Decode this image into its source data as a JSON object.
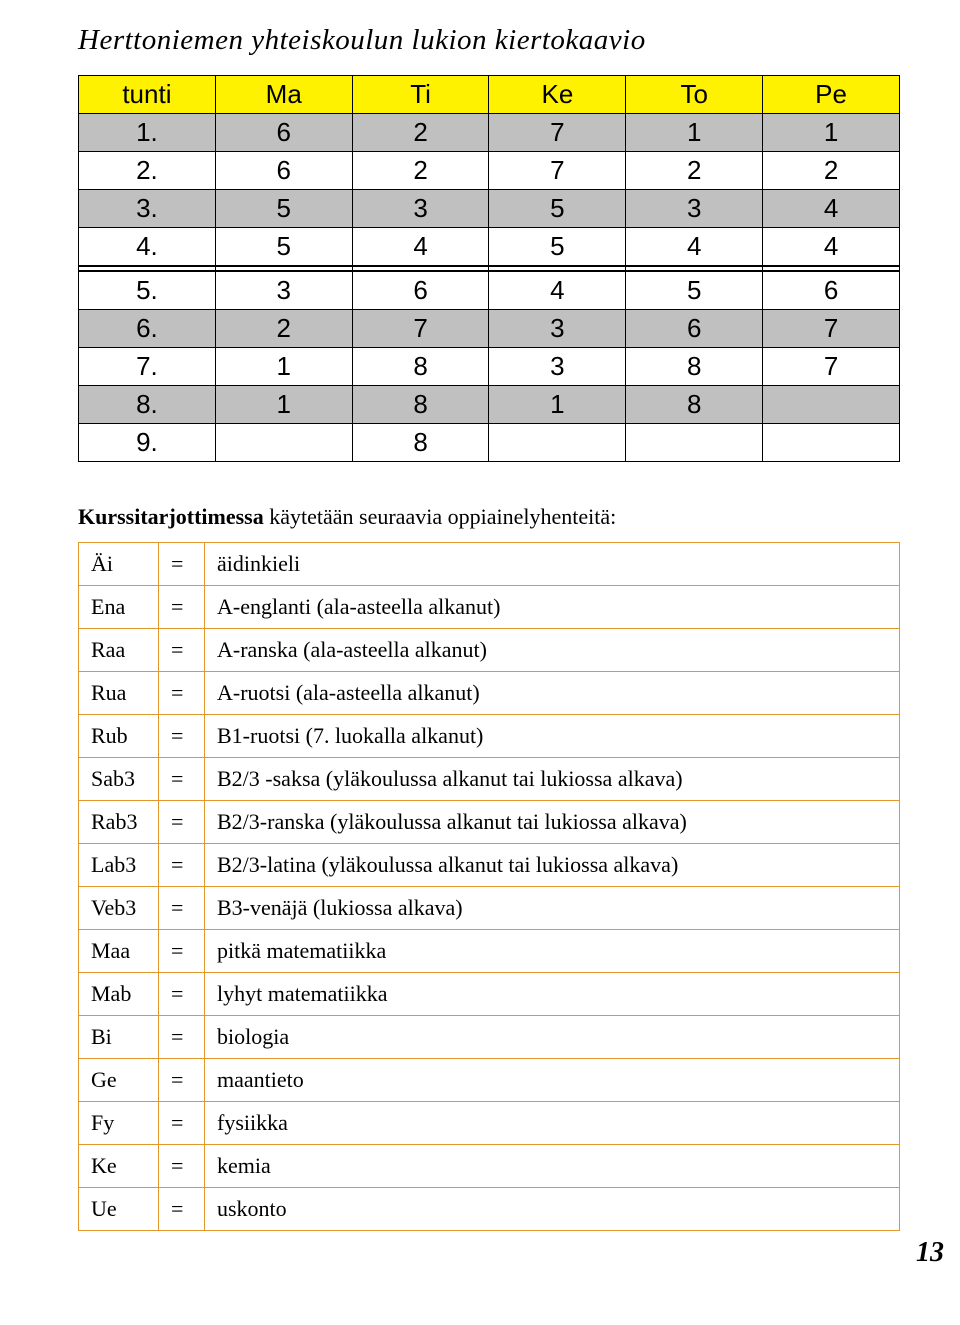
{
  "title": "Herttoniemen yhteiskoulun lukion kiertokaavio",
  "schedule": {
    "header": [
      "tunti",
      "Ma",
      "Ti",
      "Ke",
      "To",
      "Pe"
    ],
    "rows_top": [
      {
        "grey": true,
        "cells": [
          "1.",
          "6",
          "2",
          "7",
          "1",
          "1"
        ]
      },
      {
        "grey": false,
        "cells": [
          "2.",
          "6",
          "2",
          "7",
          "2",
          "2"
        ]
      },
      {
        "grey": true,
        "cells": [
          "3.",
          "5",
          "3",
          "5",
          "3",
          "4"
        ]
      },
      {
        "grey": false,
        "cells": [
          "4.",
          "5",
          "4",
          "5",
          "4",
          "4"
        ]
      }
    ],
    "rows_bottom": [
      {
        "grey": false,
        "cells": [
          "5.",
          "3",
          "6",
          "4",
          "5",
          "6"
        ]
      },
      {
        "grey": true,
        "cells": [
          "6.",
          "2",
          "7",
          "3",
          "6",
          "7"
        ]
      },
      {
        "grey": false,
        "cells": [
          "7.",
          "1",
          "8",
          "3",
          "8",
          "7"
        ]
      },
      {
        "grey": true,
        "cells": [
          "8.",
          "1",
          "8",
          "1",
          "8",
          ""
        ]
      },
      {
        "grey": false,
        "cells": [
          "9.",
          "",
          "8",
          "",
          "",
          ""
        ]
      }
    ]
  },
  "subheading_bold": "Kurssitarjottimessa",
  "subheading_rest": " käytetään seuraavia oppiainelyhenteitä:",
  "abbrev": [
    {
      "k": "Äi",
      "desc": "äidinkieli"
    },
    {
      "k": "Ena",
      "desc": "A-englanti (ala-asteella alkanut)"
    },
    {
      "k": "Raa",
      "desc": "A-ranska (ala-asteella alkanut)"
    },
    {
      "k": "Rua",
      "desc": "A-ruotsi (ala-asteella alkanut)"
    },
    {
      "k": "Rub",
      "desc": "B1-ruotsi (7. luokalla alkanut)"
    },
    {
      "k": "Sab3",
      "desc": "B2/3 -saksa (yläkoulussa alkanut tai lukiossa alkava)"
    },
    {
      "k": "Rab3",
      "desc": "B2/3-ranska (yläkoulussa alkanut tai lukiossa alkava)"
    },
    {
      "k": "Lab3",
      "desc": "B2/3-latina (yläkoulussa alkanut tai lukiossa alkava)"
    },
    {
      "k": "Veb3",
      "desc": "B3-venäjä (lukiossa alkava)"
    },
    {
      "k": "Maa",
      "desc": "pitkä matematiikka"
    },
    {
      "k": "Mab",
      "desc": "lyhyt matematiikka"
    },
    {
      "k": "Bi",
      "desc": "biologia"
    },
    {
      "k": "Ge",
      "desc": "maantieto"
    },
    {
      "k": "Fy",
      "desc": "fysiikka"
    },
    {
      "k": "Ke",
      "desc": "kemia"
    },
    {
      "k": "Ue",
      "desc": "uskonto"
    }
  ],
  "eq": "=",
  "pagenum": "13"
}
